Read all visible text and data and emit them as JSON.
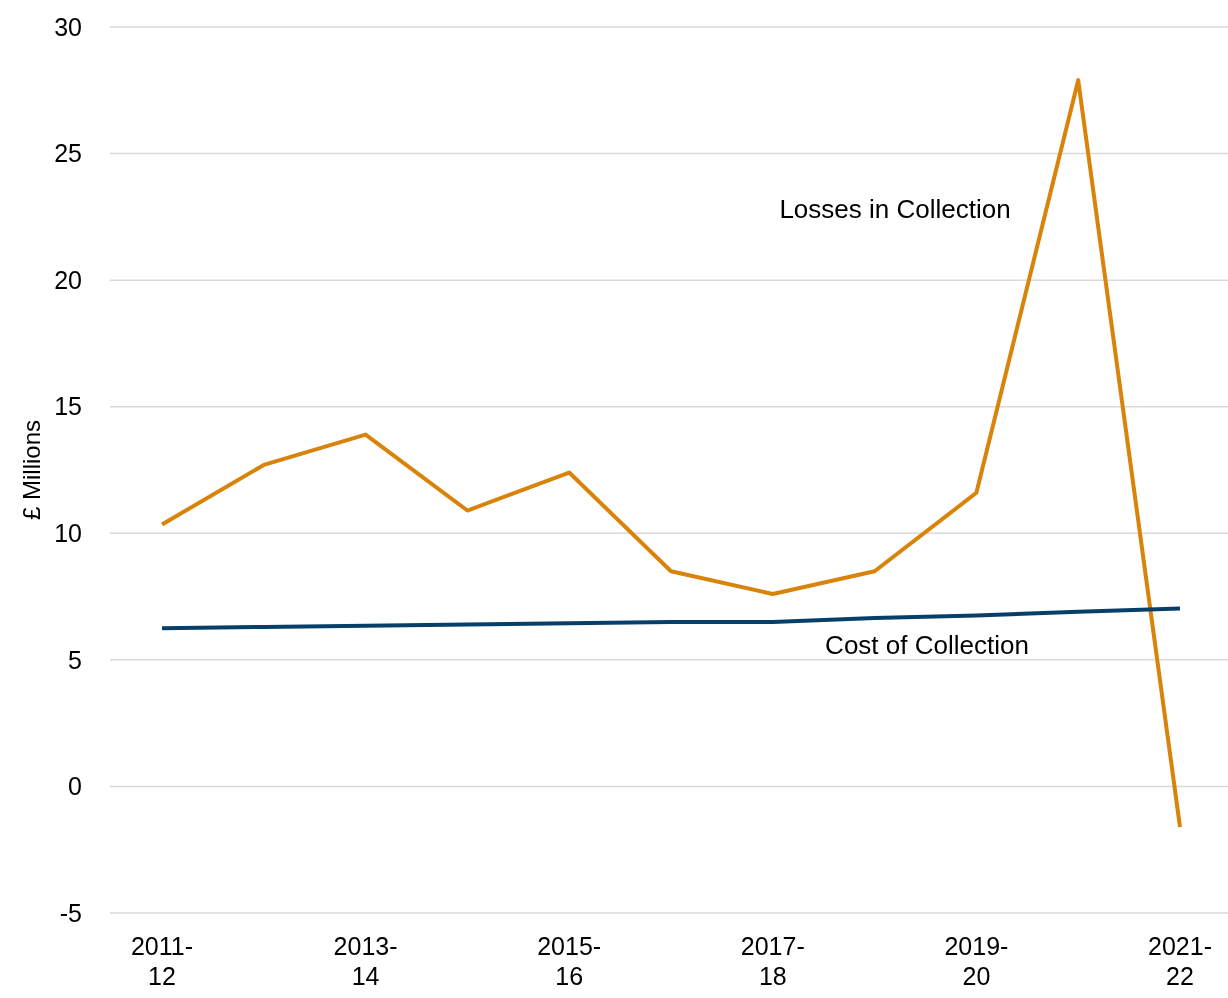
{
  "chart_data": {
    "type": "line",
    "ylabel": "£ Millions",
    "categories": [
      "2011-12",
      null,
      "2013-14",
      null,
      "2015-16",
      null,
      "2017-18",
      null,
      "2019-20",
      null,
      "2021-22"
    ],
    "series": [
      {
        "name": "Losses in Collection",
        "color": "#d9830b",
        "values": [
          10.35,
          12.7,
          13.9,
          10.9,
          12.4,
          8.5,
          7.6,
          8.5,
          11.6,
          27.9,
          -1.6
        ]
      },
      {
        "name": "Cost of Collection",
        "color": "#073f6b",
        "values": [
          6.25,
          6.3,
          6.35,
          6.4,
          6.45,
          6.5,
          6.5,
          6.65,
          6.75,
          6.9,
          7.03
        ]
      }
    ],
    "ylim": [
      -5,
      30
    ],
    "yticks": [
      -5,
      0,
      5,
      10,
      15,
      20,
      25,
      30
    ],
    "grid": "y",
    "legend": false,
    "marker": "none",
    "line_style": "solid"
  }
}
